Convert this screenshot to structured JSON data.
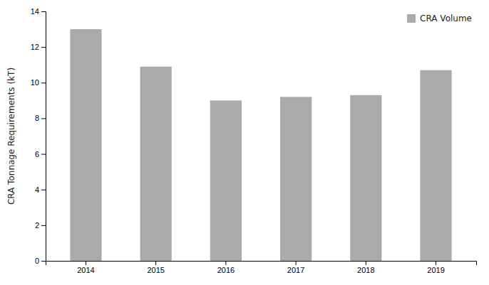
{
  "chart_data": {
    "type": "bar",
    "categories": [
      "2014",
      "2015",
      "2016",
      "2017",
      "2018",
      "2019"
    ],
    "series": [
      {
        "name": "CRA Volume",
        "color": "#aaaaaa",
        "values": [
          13.0,
          10.9,
          9.0,
          9.2,
          9.3,
          10.7
        ]
      }
    ],
    "ylabel": "CRA Tonnage Requirements (kT)",
    "ylim": [
      0,
      14
    ],
    "yticks": [
      0,
      2,
      4,
      6,
      8,
      10,
      12,
      14
    ],
    "grid": false,
    "legend": "upper-right"
  }
}
